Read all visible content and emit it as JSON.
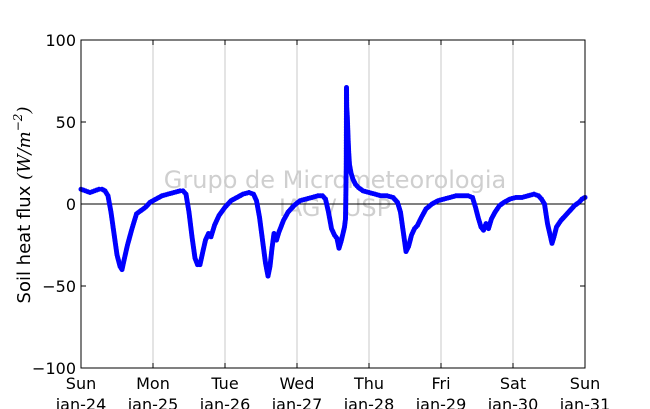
{
  "chart_data": {
    "type": "scatter",
    "title": "",
    "xlabel": "",
    "ylabel": "Soil heat flux (W/m⁻²)",
    "ylabel_math": "(W/m^{-2})",
    "ylim": [
      -100,
      100
    ],
    "xlim": [
      "2016-01-24 00:00",
      "2016-01-31 00:00"
    ],
    "yticks": [
      {
        "value": 100,
        "label": "100"
      },
      {
        "value": 50,
        "label": "50"
      },
      {
        "value": 0,
        "label": "0"
      },
      {
        "value": -50,
        "label": "−50"
      },
      {
        "value": -100,
        "label": "−100"
      }
    ],
    "xticks": [
      {
        "date": "2016-01-24",
        "day": "Sun",
        "date_label": "Jan-24"
      },
      {
        "date": "2016-01-25",
        "day": "Mon",
        "date_label": "Jan-25"
      },
      {
        "date": "2016-01-26",
        "day": "Tue",
        "date_label": "Jan-26"
      },
      {
        "date": "2016-01-27",
        "day": "Wed",
        "date_label": "Jan-27"
      },
      {
        "date": "2016-01-28",
        "day": "Thu",
        "date_label": "Jan-28"
      },
      {
        "date": "2016-01-29",
        "day": "Fri",
        "date_label": "Jan-29"
      },
      {
        "date": "2016-01-30",
        "day": "Sat",
        "date_label": "Jan-30"
      },
      {
        "date": "2016-01-31",
        "day": "Sun",
        "date_label": "Jan-31"
      }
    ],
    "grid": "vertical",
    "zero_line": true,
    "marker_color": "#0000ff",
    "watermark": [
      "Grupo de Micrometeorologia",
      "IAG / USP"
    ],
    "series": [
      {
        "color": "#0000ff",
        "points": [
          [
            "2016-01-24 00:00",
            9
          ],
          [
            "2016-01-24 01:30",
            8
          ],
          [
            "2016-01-24 03:00",
            7
          ],
          [
            "2016-01-24 04:30",
            8
          ],
          [
            "2016-01-24 06:00",
            9
          ],
          [
            "2016-01-24 07:00",
            9
          ],
          [
            "2016-01-24 08:00",
            8
          ],
          [
            "2016-01-24 09:00",
            5
          ],
          [
            "2016-01-24 10:00",
            -5
          ],
          [
            "2016-01-24 11:00",
            -18
          ],
          [
            "2016-01-24 12:00",
            -31
          ],
          [
            "2016-01-24 13:00",
            -38
          ],
          [
            "2016-01-24 13:40",
            -40
          ],
          [
            "2016-01-24 14:30",
            -33
          ],
          [
            "2016-01-24 15:30",
            -25
          ],
          [
            "2016-01-24 17:00",
            -15
          ],
          [
            "2016-01-24 18:30",
            -6
          ],
          [
            "2016-01-24 20:00",
            -4
          ],
          [
            "2016-01-24 21:30",
            -2
          ],
          [
            "2016-01-24 23:00",
            1
          ],
          [
            "2016-01-25 01:00",
            3
          ],
          [
            "2016-01-25 03:00",
            5
          ],
          [
            "2016-01-25 05:00",
            6
          ],
          [
            "2016-01-25 07:00",
            7
          ],
          [
            "2016-01-25 09:00",
            8
          ],
          [
            "2016-01-25 10:00",
            8
          ],
          [
            "2016-01-25 11:00",
            6
          ],
          [
            "2016-01-25 12:00",
            -5
          ],
          [
            "2016-01-25 13:00",
            -20
          ],
          [
            "2016-01-25 14:00",
            -33
          ],
          [
            "2016-01-25 14:50",
            -37
          ],
          [
            "2016-01-25 15:40",
            -37
          ],
          [
            "2016-01-25 16:30",
            -30
          ],
          [
            "2016-01-25 17:30",
            -22
          ],
          [
            "2016-01-25 18:30",
            -18
          ],
          [
            "2016-01-25 19:20",
            -20
          ],
          [
            "2016-01-25 20:30",
            -13
          ],
          [
            "2016-01-25 22:00",
            -7
          ],
          [
            "2016-01-26 00:00",
            -2
          ],
          [
            "2016-01-26 02:00",
            2
          ],
          [
            "2016-01-26 04:00",
            4
          ],
          [
            "2016-01-26 06:00",
            6
          ],
          [
            "2016-01-26 08:00",
            7
          ],
          [
            "2016-01-26 09:30",
            6
          ],
          [
            "2016-01-26 10:30",
            2
          ],
          [
            "2016-01-26 11:30",
            -8
          ],
          [
            "2016-01-26 12:30",
            -22
          ],
          [
            "2016-01-26 13:30",
            -36
          ],
          [
            "2016-01-26 14:20",
            -44
          ],
          [
            "2016-01-26 15:00",
            -38
          ],
          [
            "2016-01-26 15:40",
            -27
          ],
          [
            "2016-01-26 16:20",
            -18
          ],
          [
            "2016-01-26 17:10",
            -22
          ],
          [
            "2016-01-26 18:00",
            -17
          ],
          [
            "2016-01-26 19:30",
            -10
          ],
          [
            "2016-01-26 21:00",
            -5
          ],
          [
            "2016-01-26 23:00",
            -1
          ],
          [
            "2016-01-27 01:00",
            2
          ],
          [
            "2016-01-27 03:00",
            3
          ],
          [
            "2016-01-27 05:00",
            4
          ],
          [
            "2016-01-27 07:00",
            5
          ],
          [
            "2016-01-27 08:30",
            5
          ],
          [
            "2016-01-27 09:30",
            3
          ],
          [
            "2016-01-27 10:30",
            -5
          ],
          [
            "2016-01-27 11:30",
            -15
          ],
          [
            "2016-01-27 12:30",
            -19
          ],
          [
            "2016-01-27 13:20",
            -21
          ],
          [
            "2016-01-27 14:00",
            -27
          ],
          [
            "2016-01-27 14:40",
            -23
          ],
          [
            "2016-01-27 15:20",
            -18
          ],
          [
            "2016-01-27 15:50",
            -14
          ],
          [
            "2016-01-27 16:10",
            -9
          ],
          [
            "2016-01-27 16:25",
            23
          ],
          [
            "2016-01-27 16:30",
            71
          ],
          [
            "2016-01-27 16:35",
            59
          ],
          [
            "2016-01-27 16:45",
            54
          ],
          [
            "2016-01-27 16:55",
            46
          ],
          [
            "2016-01-27 17:05",
            38
          ],
          [
            "2016-01-27 17:15",
            31
          ],
          [
            "2016-01-27 17:30",
            24
          ],
          [
            "2016-01-27 18:00",
            19
          ],
          [
            "2016-01-27 18:40",
            15
          ],
          [
            "2016-01-27 19:30",
            12
          ],
          [
            "2016-01-27 20:30",
            10
          ],
          [
            "2016-01-27 22:00",
            8
          ],
          [
            "2016-01-28 00:00",
            7
          ],
          [
            "2016-01-28 02:00",
            6
          ],
          [
            "2016-01-28 04:00",
            5
          ],
          [
            "2016-01-28 06:00",
            5
          ],
          [
            "2016-01-28 08:00",
            4
          ],
          [
            "2016-01-28 09:30",
            1
          ],
          [
            "2016-01-28 10:30",
            -5
          ],
          [
            "2016-01-28 11:30",
            -18
          ],
          [
            "2016-01-28 12:20",
            -29
          ],
          [
            "2016-01-28 13:10",
            -26
          ],
          [
            "2016-01-28 14:10",
            -19
          ],
          [
            "2016-01-28 15:10",
            -15
          ],
          [
            "2016-01-28 16:10",
            -13
          ],
          [
            "2016-01-28 17:30",
            -8
          ],
          [
            "2016-01-28 19:00",
            -3
          ],
          [
            "2016-01-28 21:00",
            0
          ],
          [
            "2016-01-28 23:00",
            2
          ],
          [
            "2016-01-29 01:00",
            3
          ],
          [
            "2016-01-29 03:00",
            4
          ],
          [
            "2016-01-29 05:00",
            5
          ],
          [
            "2016-01-29 07:00",
            5
          ],
          [
            "2016-01-29 09:00",
            5
          ],
          [
            "2016-01-29 10:30",
            4
          ],
          [
            "2016-01-29 11:30",
            -2
          ],
          [
            "2016-01-29 12:30",
            -9
          ],
          [
            "2016-01-29 13:20",
            -14
          ],
          [
            "2016-01-29 14:10",
            -16
          ],
          [
            "2016-01-29 15:00",
            -12
          ],
          [
            "2016-01-29 15:50",
            -15
          ],
          [
            "2016-01-29 16:50",
            -9
          ],
          [
            "2016-01-29 18:00",
            -5
          ],
          [
            "2016-01-29 19:30",
            -1
          ],
          [
            "2016-01-29 21:00",
            1
          ],
          [
            "2016-01-29 23:00",
            3
          ],
          [
            "2016-01-30 01:00",
            4
          ],
          [
            "2016-01-30 03:00",
            4
          ],
          [
            "2016-01-30 05:00",
            5
          ],
          [
            "2016-01-30 07:00",
            6
          ],
          [
            "2016-01-30 08:30",
            5
          ],
          [
            "2016-01-30 09:30",
            3
          ],
          [
            "2016-01-30 10:30",
            0
          ],
          [
            "2016-01-30 11:30",
            -12
          ],
          [
            "2016-01-30 12:30",
            -20
          ],
          [
            "2016-01-30 13:00",
            -24
          ],
          [
            "2016-01-30 13:40",
            -20
          ],
          [
            "2016-01-30 14:30",
            -14
          ],
          [
            "2016-01-30 16:00",
            -10
          ],
          [
            "2016-01-30 17:30",
            -7
          ],
          [
            "2016-01-30 19:00",
            -4
          ],
          [
            "2016-01-30 20:30",
            -1
          ],
          [
            "2016-01-30 22:00",
            1
          ],
          [
            "2016-01-30 23:00",
            3
          ],
          [
            "2016-01-31 00:00",
            4
          ]
        ]
      }
    ]
  }
}
